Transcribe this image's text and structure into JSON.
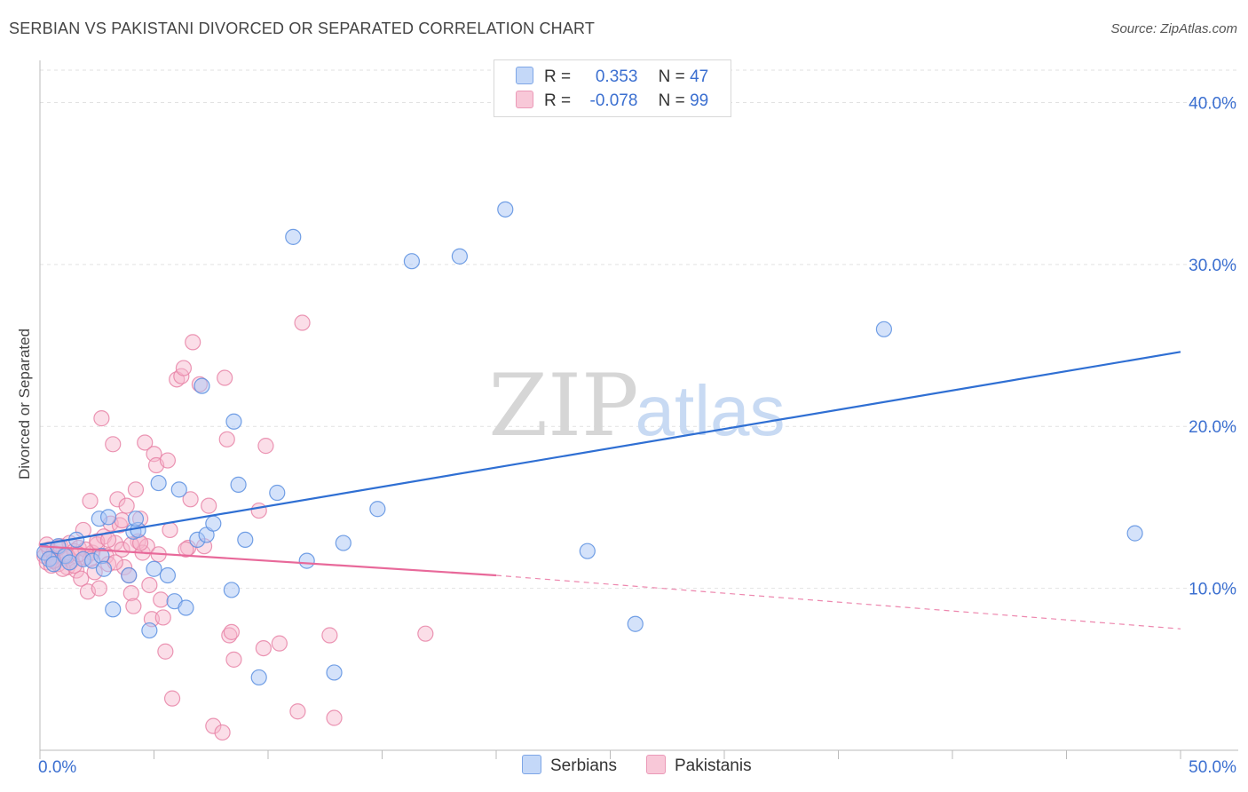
{
  "title": "SERBIAN VS PAKISTANI DIVORCED OR SEPARATED CORRELATION CHART",
  "source": "Source: ZipAtlas.com",
  "watermark": {
    "zip": "ZIP",
    "atlas": "atlas"
  },
  "legend_top": {
    "rows": [
      {
        "r_label": "R =",
        "r_value": "0.353",
        "n_label": "N =",
        "n_value": "47"
      },
      {
        "r_label": "R =",
        "r_value": "-0.078",
        "n_label": "N =",
        "n_value": "99"
      }
    ]
  },
  "legend_bottom": {
    "items": [
      "Serbians",
      "Pakistanis"
    ]
  },
  "colors": {
    "serbians_fill": "#a9c6f5",
    "serbians_stroke": "#5b8fe0",
    "serbians_line": "#2f6fd3",
    "pakistanis_fill": "#f6b6cc",
    "pakistanis_stroke": "#e884a7",
    "pakistanis_line": "#e8699a",
    "tick_label": "#3b6fd0",
    "grid": "#e2e2e2"
  },
  "chart_data": {
    "type": "scatter",
    "ylabel": "Divorced or Separated",
    "xlim": [
      0,
      50
    ],
    "ylim": [
      0,
      42
    ],
    "x_tick_labels": [
      "0.0%",
      "50.0%"
    ],
    "y_ticks": [
      10,
      20,
      30,
      40
    ],
    "y_tick_labels": [
      "10.0%",
      "20.0%",
      "30.0%",
      "40.0%"
    ],
    "grid": "horizontal dashed",
    "series": [
      {
        "name": "Serbians",
        "points": [
          [
            0.2,
            12.2
          ],
          [
            0.4,
            11.8
          ],
          [
            0.6,
            11.5
          ],
          [
            0.8,
            12.6
          ],
          [
            1.1,
            12.0
          ],
          [
            1.3,
            11.6
          ],
          [
            1.6,
            13.0
          ],
          [
            1.9,
            11.8
          ],
          [
            2.3,
            11.7
          ],
          [
            2.6,
            14.3
          ],
          [
            2.7,
            12.0
          ],
          [
            2.8,
            11.2
          ],
          [
            3.0,
            14.4
          ],
          [
            3.2,
            8.7
          ],
          [
            3.9,
            10.8
          ],
          [
            4.1,
            13.5
          ],
          [
            4.3,
            13.6
          ],
          [
            4.2,
            14.3
          ],
          [
            4.8,
            7.4
          ],
          [
            5.0,
            11.2
          ],
          [
            5.2,
            16.5
          ],
          [
            5.6,
            10.8
          ],
          [
            5.9,
            9.2
          ],
          [
            6.1,
            16.1
          ],
          [
            6.4,
            8.8
          ],
          [
            6.9,
            13.0
          ],
          [
            7.1,
            22.5
          ],
          [
            7.3,
            13.3
          ],
          [
            7.6,
            14.0
          ],
          [
            8.4,
            9.9
          ],
          [
            8.5,
            20.3
          ],
          [
            8.7,
            16.4
          ],
          [
            9.0,
            13.0
          ],
          [
            9.6,
            4.5
          ],
          [
            10.4,
            15.9
          ],
          [
            11.1,
            31.7
          ],
          [
            11.7,
            11.7
          ],
          [
            12.9,
            4.8
          ],
          [
            13.3,
            12.8
          ],
          [
            14.8,
            14.9
          ],
          [
            16.3,
            30.2
          ],
          [
            18.4,
            30.5
          ],
          [
            20.4,
            33.4
          ],
          [
            24.0,
            12.3
          ],
          [
            26.1,
            7.8
          ],
          [
            37.0,
            26.0
          ],
          [
            48.0,
            13.4
          ]
        ]
      },
      {
        "name": "Pakistanis",
        "points": [
          [
            0.2,
            12.0
          ],
          [
            0.3,
            11.6
          ],
          [
            0.4,
            12.4
          ],
          [
            0.5,
            11.4
          ],
          [
            0.6,
            12.2
          ],
          [
            0.7,
            11.8
          ],
          [
            0.8,
            11.5
          ],
          [
            0.9,
            12.6
          ],
          [
            1.0,
            11.9
          ],
          [
            1.1,
            12.1
          ],
          [
            1.2,
            11.3
          ],
          [
            1.3,
            12.8
          ],
          [
            1.4,
            11.7
          ],
          [
            1.5,
            12.3
          ],
          [
            1.6,
            11.1
          ],
          [
            1.7,
            12.5
          ],
          [
            1.8,
            10.6
          ],
          [
            1.9,
            13.6
          ],
          [
            2.0,
            11.9
          ],
          [
            2.1,
            9.8
          ],
          [
            2.2,
            15.4
          ],
          [
            2.3,
            12.2
          ],
          [
            2.4,
            11.0
          ],
          [
            2.5,
            12.7
          ],
          [
            2.6,
            10.0
          ],
          [
            2.7,
            20.5
          ],
          [
            2.8,
            13.2
          ],
          [
            2.9,
            12.0
          ],
          [
            3.0,
            11.5
          ],
          [
            3.1,
            14.0
          ],
          [
            3.2,
            18.9
          ],
          [
            3.3,
            12.8
          ],
          [
            3.4,
            15.5
          ],
          [
            3.5,
            13.9
          ],
          [
            3.6,
            12.4
          ],
          [
            3.7,
            11.3
          ],
          [
            3.8,
            15.1
          ],
          [
            3.9,
            10.8
          ],
          [
            4.0,
            9.7
          ],
          [
            4.1,
            8.9
          ],
          [
            4.2,
            16.1
          ],
          [
            4.3,
            12.9
          ],
          [
            4.4,
            14.3
          ],
          [
            4.5,
            12.2
          ],
          [
            4.6,
            19.0
          ],
          [
            4.7,
            12.6
          ],
          [
            4.8,
            10.2
          ],
          [
            4.9,
            8.1
          ],
          [
            5.0,
            18.3
          ],
          [
            5.1,
            17.6
          ],
          [
            5.2,
            12.1
          ],
          [
            5.3,
            9.3
          ],
          [
            5.4,
            8.2
          ],
          [
            5.5,
            6.1
          ],
          [
            5.6,
            17.9
          ],
          [
            5.7,
            13.6
          ],
          [
            5.8,
            3.2
          ],
          [
            6.0,
            22.9
          ],
          [
            6.2,
            23.1
          ],
          [
            6.3,
            23.6
          ],
          [
            6.5,
            12.5
          ],
          [
            6.6,
            15.5
          ],
          [
            6.7,
            25.2
          ],
          [
            7.0,
            22.6
          ],
          [
            7.2,
            12.6
          ],
          [
            7.4,
            15.1
          ],
          [
            7.6,
            1.5
          ],
          [
            8.0,
            1.1
          ],
          [
            8.1,
            23.0
          ],
          [
            8.2,
            19.2
          ],
          [
            8.3,
            7.1
          ],
          [
            8.4,
            7.3
          ],
          [
            8.5,
            5.6
          ],
          [
            9.6,
            14.8
          ],
          [
            9.8,
            6.3
          ],
          [
            9.9,
            18.8
          ],
          [
            10.5,
            6.6
          ],
          [
            11.3,
            2.4
          ],
          [
            11.5,
            26.4
          ],
          [
            12.7,
            7.1
          ],
          [
            12.9,
            2.0
          ],
          [
            2.0,
            12.4
          ],
          [
            1.0,
            11.2
          ],
          [
            0.5,
            11.9
          ],
          [
            1.5,
            11.4
          ],
          [
            2.5,
            12.9
          ],
          [
            3.0,
            13.0
          ],
          [
            4.0,
            12.7
          ],
          [
            0.8,
            12.5
          ],
          [
            1.2,
            12.0
          ],
          [
            3.6,
            14.2
          ],
          [
            2.2,
            11.8
          ],
          [
            1.7,
            12.1
          ],
          [
            0.3,
            12.7
          ],
          [
            3.3,
            11.6
          ],
          [
            4.4,
            12.8
          ],
          [
            6.4,
            12.4
          ],
          [
            0.6,
            11.7
          ],
          [
            16.9,
            7.2
          ]
        ]
      }
    ],
    "trendlines": [
      {
        "name": "Serbians",
        "x": [
          0,
          50
        ],
        "y": [
          12.7,
          24.6
        ],
        "style": "solid"
      },
      {
        "name": "Pakistanis",
        "x": [
          0,
          20
        ],
        "y": [
          12.6,
          10.8
        ],
        "style": "solid",
        "extension": {
          "x": [
            20,
            50
          ],
          "y": [
            10.8,
            7.5
          ],
          "style": "dashed"
        }
      }
    ]
  }
}
